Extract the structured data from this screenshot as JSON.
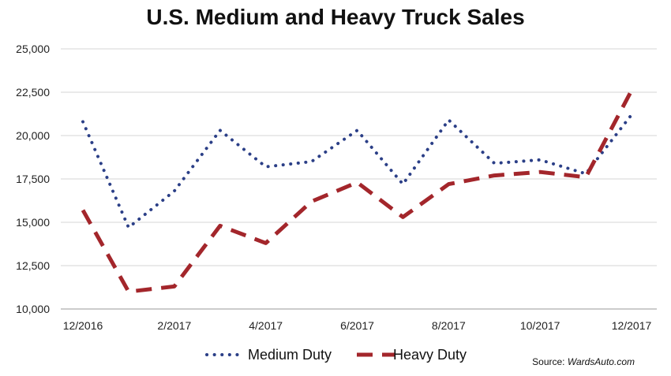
{
  "chart_data": {
    "type": "line",
    "title": "U.S. Medium and Heavy Truck Sales",
    "x": [
      "12/2016",
      "1/2017",
      "2/2017",
      "3/2017",
      "4/2017",
      "5/2017",
      "6/2017",
      "7/2017",
      "8/2017",
      "9/2017",
      "10/2017",
      "11/2017",
      "12/2017"
    ],
    "x_tick_labels": [
      "12/2016",
      "2/2017",
      "4/2017",
      "6/2017",
      "8/2017",
      "10/2017",
      "12/2017"
    ],
    "ylim": [
      10000,
      25000
    ],
    "y_ticks": [
      10000,
      12500,
      15000,
      17500,
      20000,
      22500,
      25000
    ],
    "y_tick_labels": [
      "10,000",
      "12,500",
      "15,000",
      "17,500",
      "20,000",
      "22,500",
      "25,000"
    ],
    "grid": true,
    "legend_position": "bottom",
    "series": [
      {
        "name": "Medium Duty",
        "style": "dotted",
        "color": "#2b3f87",
        "values": [
          20800,
          14700,
          16800,
          20300,
          18200,
          18500,
          20300,
          17200,
          20900,
          18400,
          18600,
          17800,
          21200
        ]
      },
      {
        "name": "Heavy Duty",
        "style": "dashed",
        "color": "#a3262b",
        "values": [
          15700,
          11000,
          11300,
          14800,
          13800,
          16200,
          17300,
          15300,
          17200,
          17700,
          17900,
          17600,
          22600
        ]
      }
    ]
  },
  "source": {
    "label": "Source:",
    "name": "WardsAuto.com"
  }
}
